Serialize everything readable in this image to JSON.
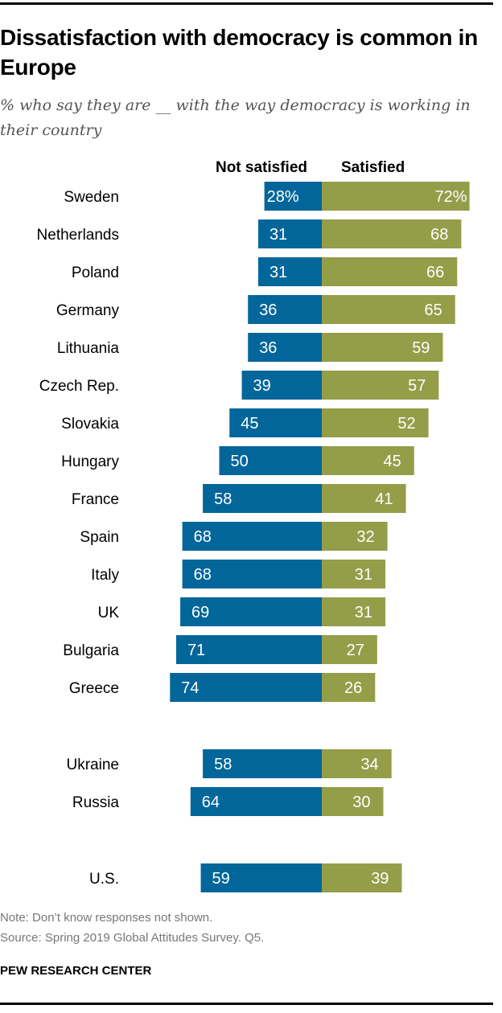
{
  "title": "Dissatisfaction with democracy is common in Europe",
  "subtitle": "% who say they are __ with the way democracy is working in their country",
  "note": "Note: Don’t know responses not shown.",
  "source": "Source: Spring 2019 Global Attitudes Survey. Q5.",
  "brand": "PEW RESEARCH CENTER",
  "colors": {
    "not_satisfied": "#03669a",
    "satisfied": "#949d48"
  },
  "chart_data": {
    "type": "bar",
    "orientation": "horizontal-diverging",
    "categories": [
      "Sweden",
      "Netherlands",
      "Poland",
      "Germany",
      "Lithuania",
      "Czech Rep.",
      "Slovakia",
      "Hungary",
      "France",
      "Spain",
      "Italy",
      "UK",
      "Bulgaria",
      "Greece",
      "Ukraine",
      "Russia",
      "U.S."
    ],
    "groups": [
      14,
      2,
      1
    ],
    "series": [
      {
        "name": "Not satisfied",
        "values": [
          28,
          31,
          31,
          36,
          36,
          39,
          45,
          50,
          58,
          68,
          68,
          69,
          71,
          74,
          58,
          64,
          59
        ]
      },
      {
        "name": "Satisfied",
        "values": [
          72,
          68,
          66,
          65,
          59,
          57,
          52,
          45,
          41,
          32,
          31,
          31,
          27,
          26,
          34,
          30,
          39
        ]
      }
    ],
    "first_row_suffix": "%"
  }
}
